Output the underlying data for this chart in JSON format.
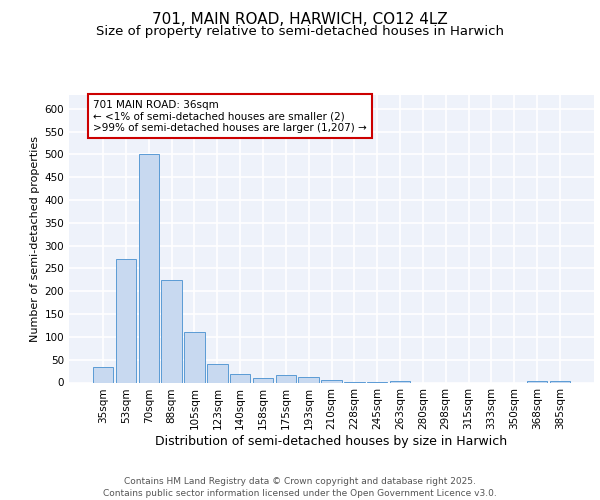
{
  "title1": "701, MAIN ROAD, HARWICH, CO12 4LZ",
  "title2": "Size of property relative to semi-detached houses in Harwich",
  "xlabel": "Distribution of semi-detached houses by size in Harwich",
  "ylabel": "Number of semi-detached properties",
  "categories": [
    "35sqm",
    "53sqm",
    "70sqm",
    "88sqm",
    "105sqm",
    "123sqm",
    "140sqm",
    "158sqm",
    "175sqm",
    "193sqm",
    "210sqm",
    "228sqm",
    "245sqm",
    "263sqm",
    "280sqm",
    "298sqm",
    "315sqm",
    "333sqm",
    "350sqm",
    "368sqm",
    "385sqm"
  ],
  "values": [
    35,
    270,
    500,
    225,
    110,
    40,
    18,
    9,
    16,
    12,
    5,
    2,
    2,
    3,
    0,
    0,
    0,
    0,
    0,
    4,
    4
  ],
  "bar_color": "#c8d9f0",
  "bar_edge_color": "#5b9bd5",
  "annotation_text": "701 MAIN ROAD: 36sqm\n← <1% of semi-detached houses are smaller (2)\n>99% of semi-detached houses are larger (1,207) →",
  "annotation_box_color": "#ffffff",
  "annotation_box_edge": "#cc0000",
  "ylim": [
    0,
    630
  ],
  "yticks": [
    0,
    50,
    100,
    150,
    200,
    250,
    300,
    350,
    400,
    450,
    500,
    550,
    600
  ],
  "footer": "Contains HM Land Registry data © Crown copyright and database right 2025.\nContains public sector information licensed under the Open Government Licence v3.0.",
  "background_color": "#eef2fa",
  "grid_color": "#ffffff",
  "title1_fontsize": 11,
  "title2_fontsize": 9.5,
  "xlabel_fontsize": 9,
  "ylabel_fontsize": 8,
  "tick_fontsize": 7.5,
  "annotation_fontsize": 7.5,
  "footer_fontsize": 6.5
}
